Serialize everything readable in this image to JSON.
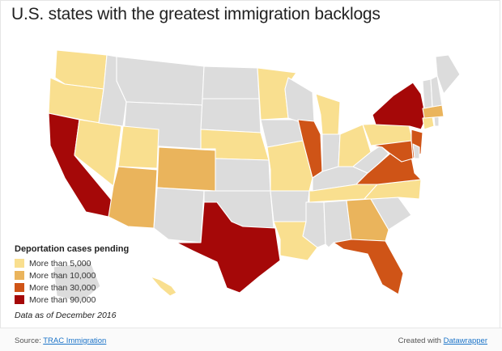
{
  "title": "U.S. states with the greatest immigration backlogs",
  "legend": {
    "title": "Deportation cases pending",
    "items": [
      {
        "label": "More than 5,000",
        "color": "#f9df8f"
      },
      {
        "label": "More than 10,000",
        "color": "#eab45c"
      },
      {
        "label": "More than 30,000",
        "color": "#cf5417"
      },
      {
        "label": "More than 90,000",
        "color": "#a50808"
      }
    ],
    "none_color": "#dcdcdc"
  },
  "note": "Data as of December 2016",
  "footer": {
    "source_prefix": "Source: ",
    "source_link": "TRAC Immigration",
    "credit_prefix": "Created with ",
    "credit_link": "Datawrapper"
  },
  "map_data": {
    "tier_by_state": {
      "WA": 1,
      "OR": 1,
      "NV": 1,
      "UT": 1,
      "MN": 1,
      "NE": 1,
      "MI": 1,
      "OH": 1,
      "MO": 1,
      "TN": 1,
      "LA": 1,
      "PA": 1,
      "NC": 1,
      "CT": 1,
      "HI": 1,
      "AZ": 2,
      "CO": 2,
      "GA": 2,
      "MA": 2,
      "IL": 3,
      "NJ": 3,
      "VA": 3,
      "MD": 3,
      "FL": 3,
      "CA": 4,
      "TX": 4,
      "NY": 4
    }
  }
}
